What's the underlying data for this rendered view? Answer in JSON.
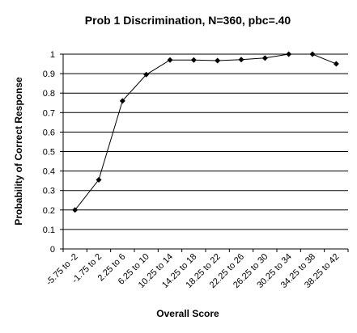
{
  "chart_data": {
    "type": "line",
    "title": "Prob 1 Discrimination, N=360, pbc=.40",
    "xlabel": "Overall Score",
    "ylabel": "Probability of Correct Response",
    "categories": [
      "-5.75 to -2",
      "-1.75 to 2",
      "2.25 to 6",
      "6.25 to 10",
      "10.25 to 14",
      "14.25 to 18",
      "18.25 to 22",
      "22.25 to 26",
      "26.25 to 30",
      "30.25 to 34",
      "34.25 to 38",
      "38.25 to 42"
    ],
    "series": [
      {
        "values": [
          0.2,
          0.355,
          0.76,
          0.895,
          0.97,
          0.97,
          0.967,
          0.972,
          0.98,
          1.0,
          1.0,
          0.95
        ]
      }
    ],
    "ylim": [
      0,
      1
    ],
    "yticks": [
      "0",
      "0.1",
      "0.2",
      "0.3",
      "0.4",
      "0.5",
      "0.6",
      "0.7",
      "0.8",
      "0.9",
      "1"
    ],
    "grid": true,
    "legend": "none",
    "colors": {
      "line": "#000000",
      "marker": "#000000",
      "grid": "#000000",
      "background": "#ffffff"
    }
  }
}
